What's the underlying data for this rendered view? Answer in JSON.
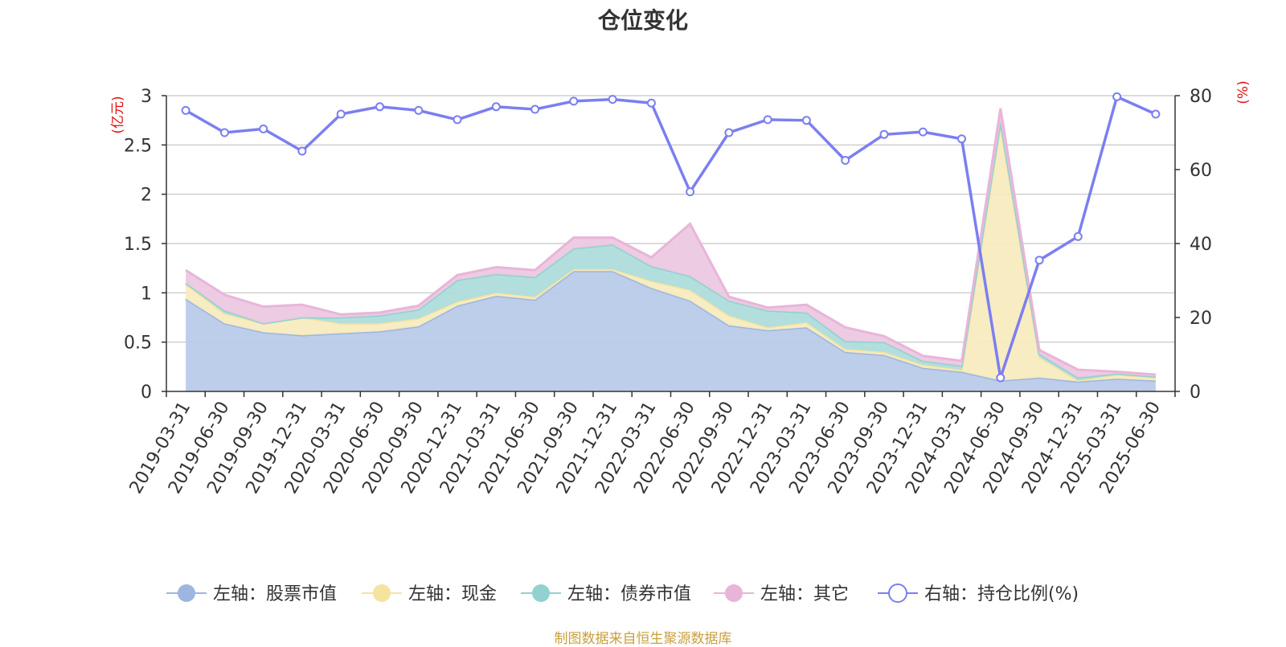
{
  "chart_data": {
    "type": "area",
    "title": "仓位变化",
    "source": "制图数据来自恒生聚源数据库",
    "left_axis": {
      "unit": "(亿元)",
      "ylim": [
        0,
        3
      ],
      "ticks": [
        "0",
        "0.5",
        "1",
        "1.5",
        "2",
        "2.5",
        "3"
      ]
    },
    "right_axis": {
      "unit": "(%)",
      "ylim": [
        0,
        80
      ],
      "ticks": [
        "0",
        "20",
        "40",
        "60",
        "80"
      ]
    },
    "categories": [
      "2019-03-31",
      "2019-06-30",
      "2019-09-30",
      "2019-12-31",
      "2020-03-31",
      "2020-06-30",
      "2020-09-30",
      "2020-12-31",
      "2021-03-31",
      "2021-06-30",
      "2021-09-30",
      "2021-12-31",
      "2022-03-31",
      "2022-06-30",
      "2022-09-30",
      "2022-12-31",
      "2023-03-31",
      "2023-06-30",
      "2023-09-30",
      "2023-12-31",
      "2024-03-31",
      "2024-06-30",
      "2024-09-30",
      "2024-12-31",
      "2025-03-31",
      "2025-06-30"
    ],
    "stacked": true,
    "series": [
      {
        "name": "左轴：股票市值",
        "axis": "left",
        "type": "area",
        "color": "#9db6e0",
        "fill": "#b9cbe9",
        "values": [
          0.94,
          0.69,
          0.6,
          0.57,
          0.59,
          0.61,
          0.66,
          0.87,
          0.97,
          0.93,
          1.22,
          1.22,
          1.05,
          0.92,
          0.67,
          0.62,
          0.65,
          0.4,
          0.37,
          0.24,
          0.2,
          0.11,
          0.14,
          0.1,
          0.13,
          0.11
        ]
      },
      {
        "name": "左轴：现金",
        "axis": "left",
        "type": "area",
        "color": "#f5e3a0",
        "fill": "#f8ebbf",
        "values": [
          0.15,
          0.1,
          0.09,
          0.18,
          0.1,
          0.08,
          0.08,
          0.04,
          0.03,
          0.03,
          0.02,
          0.02,
          0.07,
          0.11,
          0.1,
          0.03,
          0.05,
          0.03,
          0.03,
          0.03,
          0.02,
          2.6,
          0.21,
          0.01,
          0.04,
          0.03
        ]
      },
      {
        "name": "左轴：债券市值",
        "axis": "left",
        "type": "area",
        "color": "#91d1d0",
        "fill": "#aedddc",
        "values": [
          0.01,
          0.03,
          0.0,
          0.0,
          0.06,
          0.08,
          0.09,
          0.22,
          0.19,
          0.2,
          0.21,
          0.25,
          0.15,
          0.14,
          0.15,
          0.17,
          0.1,
          0.08,
          0.1,
          0.04,
          0.04,
          0.03,
          0.03,
          0.03,
          0.01,
          0.01
        ]
      },
      {
        "name": "左轴：其它",
        "axis": "left",
        "type": "area",
        "color": "#e8b5d9",
        "fill": "#ecc8e2",
        "values": [
          0.13,
          0.16,
          0.17,
          0.13,
          0.03,
          0.03,
          0.04,
          0.05,
          0.07,
          0.07,
          0.11,
          0.07,
          0.09,
          0.53,
          0.04,
          0.03,
          0.08,
          0.14,
          0.06,
          0.05,
          0.05,
          0.13,
          0.04,
          0.08,
          0.02,
          0.02
        ]
      },
      {
        "name": "右轴：持仓比例(%)",
        "axis": "right",
        "type": "line",
        "color": "#7b7ff0",
        "values": [
          76,
          70,
          71,
          65,
          75,
          77,
          76,
          73.5,
          77,
          76.3,
          78.5,
          79,
          78,
          54,
          70,
          73.5,
          73.3,
          62.5,
          69.5,
          70.2,
          68.3,
          3.7,
          35.5,
          41.9,
          79.7,
          75
        ]
      }
    ]
  },
  "legend": {
    "items": [
      {
        "label": "左轴：股票市值",
        "icon": "circle-icon",
        "color": "#9db6e0",
        "hollow": false
      },
      {
        "label": "左轴：现金",
        "icon": "circle-icon",
        "color": "#f5e3a0",
        "hollow": false
      },
      {
        "label": "左轴：债券市值",
        "icon": "circle-icon",
        "color": "#91d1d0",
        "hollow": false
      },
      {
        "label": "左轴：其它",
        "icon": "circle-icon",
        "color": "#e8b5d9",
        "hollow": false
      },
      {
        "label": "右轴：持仓比例(%)",
        "icon": "hollow-circle-icon",
        "color": "#7b7ff0",
        "hollow": true
      }
    ]
  }
}
